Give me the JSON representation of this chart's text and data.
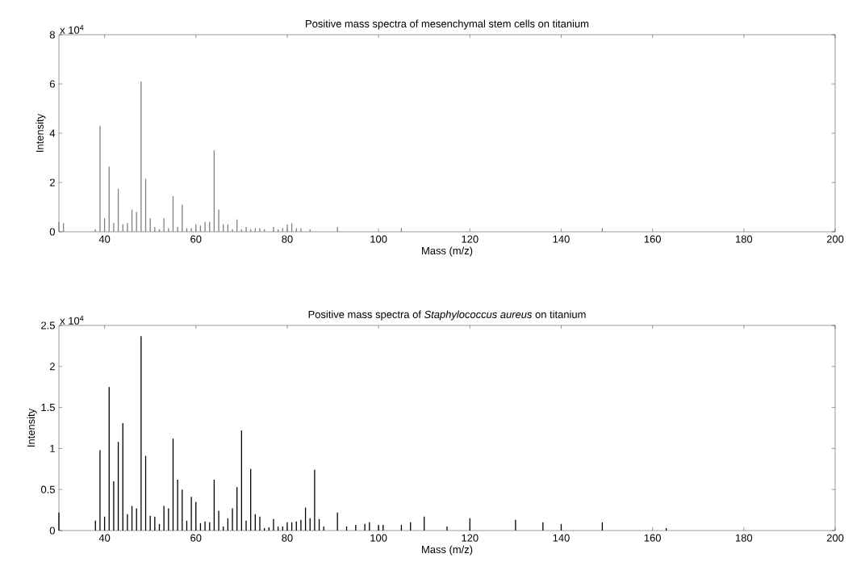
{
  "chart_data": [
    {
      "type": "bar",
      "title": "Positive mass spectra of mesenchymal stem cells on titanium",
      "xlabel": "Mass (m/z)",
      "ylabel": "Intensity",
      "annotations": [
        "x 10$^{4}$"
      ],
      "color": "#808080",
      "x": [
        30,
        31,
        38,
        39,
        40,
        41,
        42,
        43,
        44,
        45,
        46,
        47,
        48,
        49,
        50,
        51,
        52,
        53,
        54,
        55,
        56,
        57,
        58,
        59,
        60,
        61,
        62,
        63,
        64,
        65,
        66,
        67,
        68,
        69,
        70,
        71,
        72,
        73,
        74,
        75,
        77,
        78,
        79,
        80,
        81,
        82,
        83,
        85,
        91,
        105,
        149
      ],
      "values": [
        0.4,
        0.35,
        0.1,
        4.3,
        0.55,
        2.65,
        0.35,
        1.75,
        0.3,
        0.35,
        0.9,
        0.8,
        6.1,
        2.15,
        0.55,
        0.2,
        0.1,
        0.55,
        0.15,
        1.45,
        0.2,
        1.1,
        0.15,
        0.15,
        0.3,
        0.25,
        0.4,
        0.4,
        3.3,
        0.9,
        0.3,
        0.3,
        0.1,
        0.5,
        0.1,
        0.2,
        0.1,
        0.15,
        0.15,
        0.1,
        0.2,
        0.1,
        0.15,
        0.3,
        0.35,
        0.15,
        0.15,
        0.1,
        0.2,
        0.15,
        0.15
      ],
      "xlim": [
        30,
        200
      ],
      "ylim": [
        0,
        8
      ],
      "xticks": [
        40,
        60,
        80,
        100,
        120,
        140,
        160,
        180,
        200
      ],
      "yticks": [
        0,
        2,
        4,
        6,
        8
      ]
    },
    {
      "type": "bar",
      "title": "Positive mass spectra of *Staphylococcus aureus* on titanium",
      "xlabel": "Mass (m/z)",
      "ylabel": "Intensity",
      "annotations": [
        "x 10$^{4}$"
      ],
      "color": "#000000",
      "x": [
        30,
        38,
        39,
        40,
        41,
        42,
        43,
        44,
        45,
        46,
        47,
        48,
        49,
        50,
        51,
        52,
        53,
        54,
        55,
        56,
        57,
        58,
        59,
        60,
        61,
        62,
        63,
        64,
        65,
        66,
        67,
        68,
        69,
        70,
        71,
        72,
        73,
        74,
        75,
        76,
        77,
        78,
        79,
        80,
        81,
        82,
        83,
        84,
        85,
        86,
        87,
        88,
        91,
        93,
        95,
        97,
        98,
        100,
        101,
        105,
        107,
        110,
        115,
        120,
        130,
        136,
        140,
        149,
        163
      ],
      "values": [
        0.22,
        0.12,
        0.98,
        0.17,
        1.75,
        0.6,
        1.08,
        1.31,
        0.2,
        0.3,
        0.27,
        2.37,
        0.91,
        0.18,
        0.17,
        0.08,
        0.3,
        0.27,
        1.12,
        0.62,
        0.5,
        0.12,
        0.41,
        0.35,
        0.09,
        0.11,
        0.1,
        0.62,
        0.24,
        0.05,
        0.15,
        0.27,
        0.53,
        1.22,
        0.12,
        0.75,
        0.2,
        0.17,
        0.03,
        0.04,
        0.14,
        0.05,
        0.05,
        0.1,
        0.1,
        0.11,
        0.13,
        0.28,
        0.15,
        0.74,
        0.14,
        0.05,
        0.22,
        0.05,
        0.07,
        0.08,
        0.1,
        0.07,
        0.07,
        0.07,
        0.1,
        0.17,
        0.05,
        0.15,
        0.13,
        0.1,
        0.08,
        0.1,
        0.03
      ],
      "xlim": [
        30,
        200
      ],
      "ylim": [
        0,
        2.5
      ],
      "xticks": [
        40,
        60,
        80,
        100,
        120,
        140,
        160,
        180,
        200
      ],
      "yticks": [
        0,
        0.5,
        1,
        1.5,
        2,
        2.5
      ]
    }
  ]
}
